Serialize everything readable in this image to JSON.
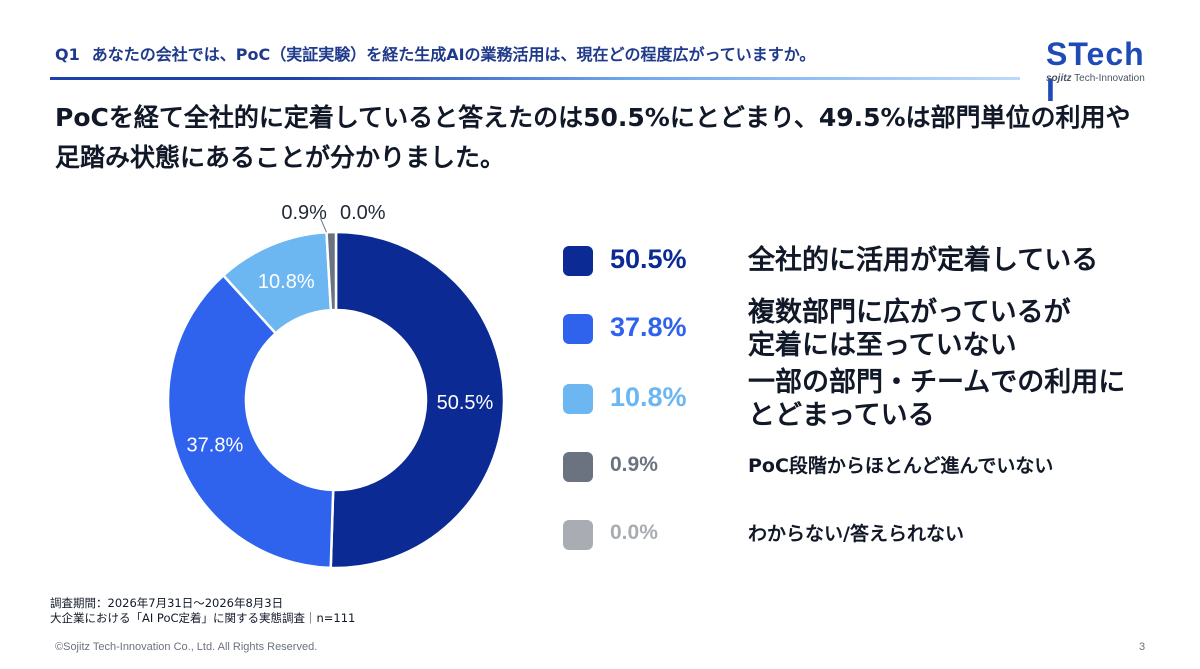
{
  "header": {
    "question_number": "Q1",
    "question_text": "あなたの会社では、PoC（実証実験）を経た生成AIの業務活用は、現在どの程度広がっていますか。"
  },
  "logo": {
    "word": "STech I",
    "sub_brand": "sojitz",
    "sub_text": "Tech-Innovation"
  },
  "headline": {
    "line1": "PoCを経て全社的に定着していると答えたのは50.5%にとどまり、49.5%は部門単位の利用や",
    "line2": "足踏み状態にあることが分かりました。"
  },
  "chart_data": {
    "type": "pie",
    "donut": true,
    "categories": [
      "全社的に活用が定着している",
      "複数部門に広がっているが定着には至っていない",
      "一部の部門・チームでの利用にとどまっている",
      "PoC段階からほとんど進んでいない",
      "わからない/答えられない"
    ],
    "values": [
      50.5,
      37.8,
      10.8,
      0.9,
      0.0
    ],
    "value_labels": [
      "50.5%",
      "37.8%",
      "10.8%",
      "0.9%",
      "0.0%"
    ],
    "colors": [
      "#0b2a94",
      "#2f63ee",
      "#6cb6f2",
      "#6b7280",
      "#a9adb3"
    ],
    "unit": "%",
    "legend_position": "right"
  },
  "legend": {
    "items": [
      {
        "value": "50.5%",
        "label_lines": [
          "全社的に活用が定着している"
        ]
      },
      {
        "value": "37.8%",
        "label_lines": [
          "複数部門に広がっているが",
          "定着には至っていない"
        ]
      },
      {
        "value": "10.8%",
        "label_lines": [
          "一部の部門・チームでの利用に",
          "とどまっている"
        ]
      },
      {
        "value": "0.9%",
        "label_lines": [
          "PoC段階からほとんど進んでいない"
        ]
      },
      {
        "value": "0.0%",
        "label_lines": [
          "わからない/答えられない"
        ]
      }
    ]
  },
  "footnote": {
    "line1": "調査期間：2026年7月31日～2026年8月3日",
    "line2": "大企業における「AI PoC定着」に関する実態調査｜n=111"
  },
  "footer": {
    "copyright": "©Sojitz Tech-Innovation Co., Ltd. All Rights Reserved.",
    "page_number": "3"
  }
}
